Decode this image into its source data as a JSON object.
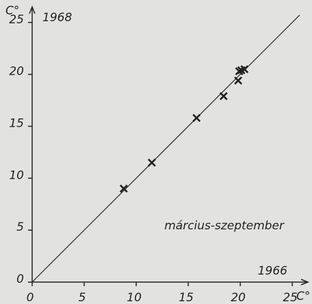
{
  "chart_data": {
    "type": "scatter",
    "y_label": "C°",
    "y_title": "1968",
    "x_title": "1966",
    "x_label": "C°",
    "annotation": "március-szeptember",
    "x": [
      8.8,
      11.5,
      15.8,
      18.4,
      19.8,
      19.9,
      20.1,
      20.4
    ],
    "y": [
      9.0,
      11.5,
      15.8,
      17.9,
      19.4,
      20.3,
      20.4,
      20.5
    ],
    "color": "#222222",
    "xlim": [
      0,
      26.5
    ],
    "ylim": [
      0,
      26.5
    ],
    "xticks": [
      0,
      5,
      10,
      15,
      20,
      25
    ],
    "yticks": [
      0,
      5,
      10,
      15,
      20,
      25
    ],
    "grid": false
  }
}
